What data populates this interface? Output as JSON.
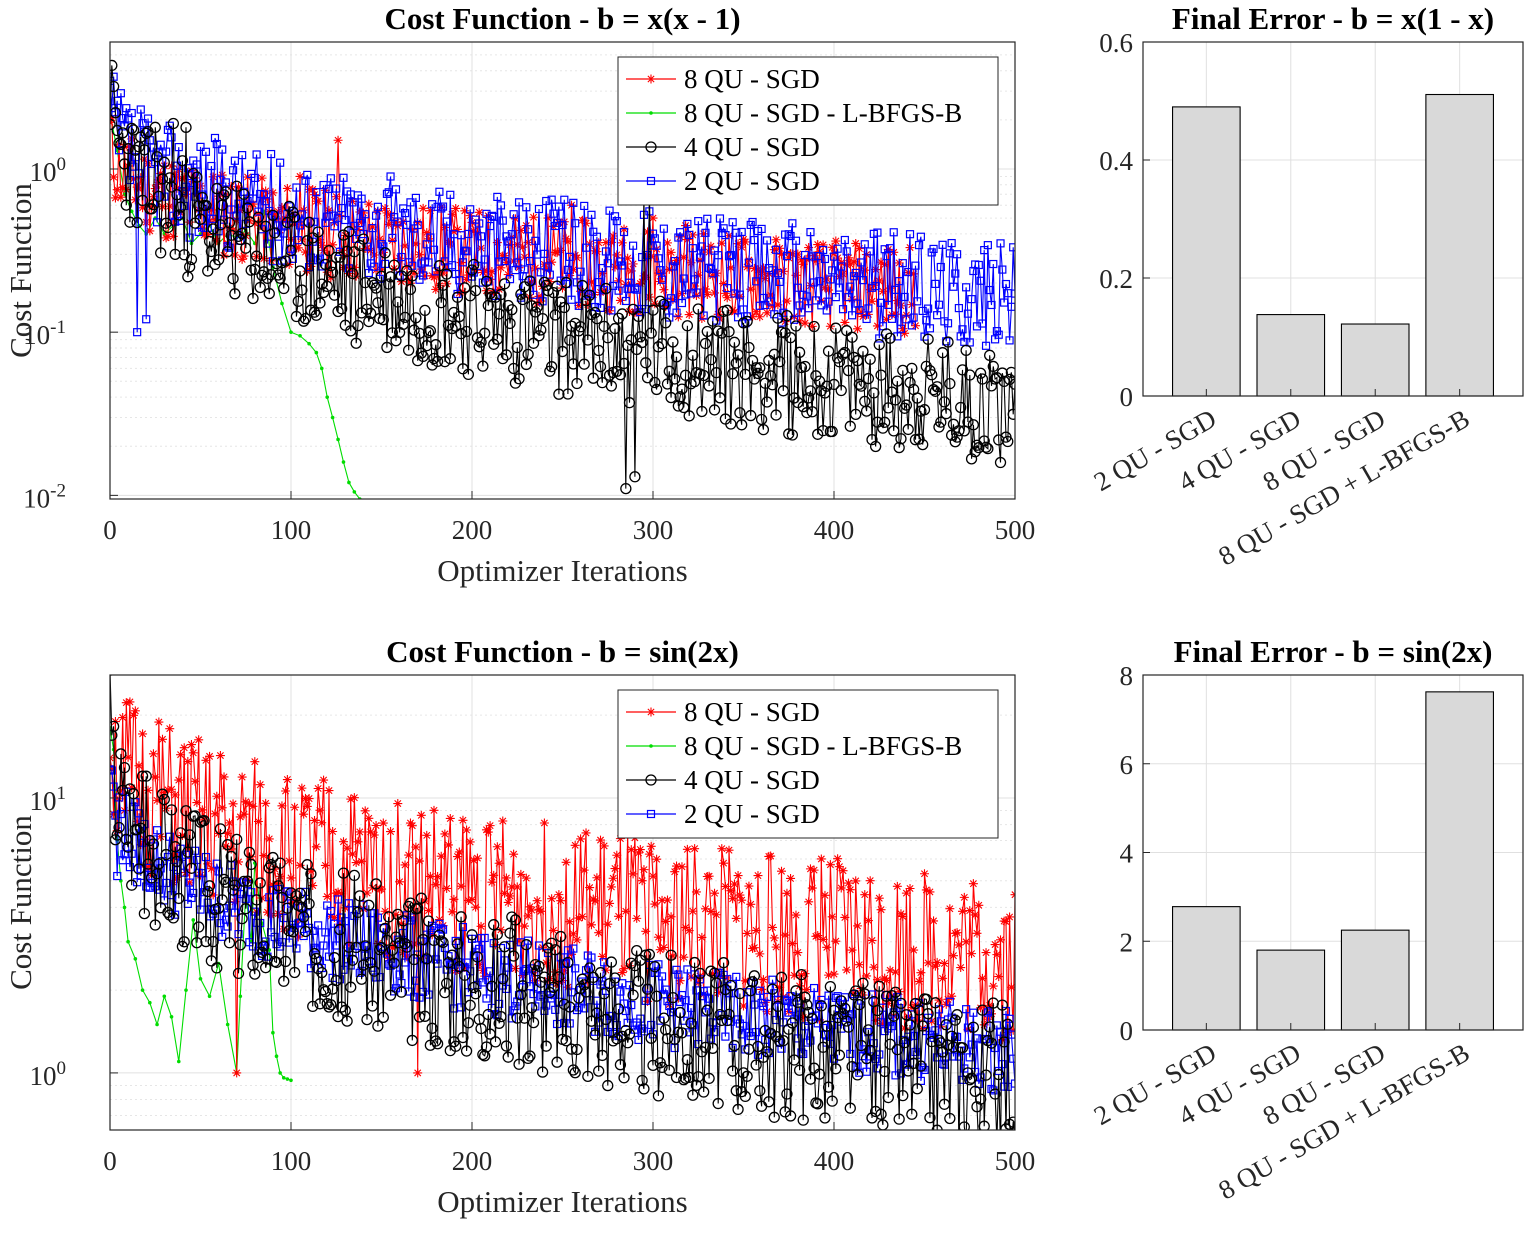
{
  "chart_data": [
    {
      "type": "line",
      "title": "Cost Function - b = x(x - 1)",
      "xlabel": "Optimizer Iterations",
      "ylabel": "Cost Function",
      "yscale": "log",
      "xlim": [
        0,
        500
      ],
      "ylim": [
        0.0095,
        6
      ],
      "xticks": [
        0,
        100,
        200,
        300,
        400,
        500
      ],
      "yticks": [
        {
          "value": 0.01,
          "label": "10",
          "exp": "-2"
        },
        {
          "value": 0.1,
          "label": "10",
          "exp": "-1"
        },
        {
          "value": 1,
          "label": "10",
          "exp": "0"
        }
      ],
      "grid": true,
      "legend_position": "top-right",
      "series": [
        {
          "name": "8 QU - SGD",
          "color": "#ff0000",
          "marker": "asterisk",
          "x_end": 445,
          "y_start": 1.6,
          "y_end": 0.18,
          "noise": 0.45,
          "seed": 11,
          "spikes": [
            [
              105,
              0.9
            ],
            [
              110,
              0.75
            ],
            [
              126,
              1.5
            ],
            [
              230,
              0.45
            ],
            [
              242,
              0.5
            ],
            [
              255,
              0.6
            ],
            [
              300,
              0.5
            ],
            [
              318,
              0.45
            ]
          ]
        },
        {
          "name": "8 QU - SGD - L-BFGS-B",
          "color": "#00dd00",
          "marker": "dot",
          "x": [
            0,
            4,
            8,
            12,
            16,
            20,
            25,
            30,
            35,
            40,
            45,
            50,
            55,
            60,
            65,
            70,
            75,
            80,
            85,
            90,
            95,
            100,
            105,
            110,
            114,
            117,
            120,
            123,
            126,
            129,
            132,
            135,
            138
          ],
          "y": [
            2.2,
            1.3,
            0.7,
            0.55,
            0.45,
            0.4,
            0.5,
            0.4,
            0.45,
            0.5,
            0.35,
            0.4,
            0.45,
            0.35,
            0.4,
            0.38,
            0.42,
            0.35,
            0.55,
            0.25,
            0.15,
            0.1,
            0.095,
            0.085,
            0.075,
            0.06,
            0.04,
            0.03,
            0.022,
            0.016,
            0.012,
            0.0105,
            0.0095
          ]
        },
        {
          "name": "4 QU - SGD",
          "color": "#000000",
          "marker": "circle",
          "x_end": 500,
          "y_start": 3.5,
          "y_end": 0.035,
          "noise": 0.6,
          "seed": 23,
          "spikes": [
            [
              25,
              1.8
            ],
            [
              35,
              1.9
            ],
            [
              42,
              1.8
            ],
            [
              295,
              0.7
            ],
            [
              298,
              0.8
            ],
            [
              285,
              0.011
            ],
            [
              290,
              0.013
            ]
          ]
        },
        {
          "name": "2 QU - SGD",
          "color": "#0000ff",
          "marker": "square",
          "x_end": 500,
          "y_start": 2.6,
          "y_end": 0.17,
          "noise": 0.55,
          "seed": 37,
          "spikes": [
            [
              15,
              0.1
            ],
            [
              20,
              0.12
            ],
            [
              298,
              0.55
            ]
          ]
        }
      ]
    },
    {
      "type": "bar",
      "title": "Final Error - b = x(1 - x)",
      "categories": [
        "2 QU - SGD",
        "4 QU - SGD",
        "8 QU - SGD",
        "8 QU - SGD + L-BFGS-B"
      ],
      "values": [
        0.49,
        0.138,
        0.122,
        0.511
      ],
      "ylim": [
        0,
        0.6
      ],
      "yticks": [
        "0",
        "0.2",
        "0.4",
        "0.6"
      ],
      "grid": true,
      "bar_color": "#d9d9d9"
    },
    {
      "type": "line",
      "title": "Cost Function - b = sin(2x)",
      "xlabel": "Optimizer Iterations",
      "ylabel": "Cost Function",
      "yscale": "log",
      "xlim": [
        0,
        500
      ],
      "ylim": [
        0.62,
        28
      ],
      "xticks": [
        0,
        100,
        200,
        300,
        400,
        500
      ],
      "yticks": [
        {
          "value": 1,
          "label": "10",
          "exp": "0"
        },
        {
          "value": 10,
          "label": "10",
          "exp": "1"
        }
      ],
      "grid": true,
      "legend_position": "top-right",
      "series": [
        {
          "name": "8 QU - SGD",
          "color": "#ff0000",
          "marker": "asterisk",
          "x_end": 500,
          "y_start": 20,
          "y_end": 2.6,
          "noise": 0.5,
          "seed": 51,
          "spikes": [
            [
              8,
              9
            ],
            [
              165,
              6.2
            ],
            [
              393,
              6
            ],
            [
              70,
              1.0
            ],
            [
              170,
              1.0
            ]
          ]
        },
        {
          "name": "8 QU - SGD - L-BFGS-B",
          "color": "#00dd00",
          "marker": "dot",
          "x": [
            0,
            2,
            4,
            6,
            8,
            10,
            14,
            18,
            22,
            26,
            30,
            34,
            38,
            42,
            46,
            50,
            55,
            60,
            65,
            70,
            72,
            75,
            78,
            80,
            84,
            88,
            90,
            92,
            94,
            96,
            98,
            100
          ],
          "y": [
            18,
            15,
            7,
            5,
            4,
            3,
            2.6,
            2.0,
            1.8,
            1.5,
            1.9,
            1.6,
            1.1,
            2.0,
            3.6,
            2.2,
            1.9,
            2.5,
            1.5,
            1.0,
            1.9,
            4.5,
            3.0,
            5.8,
            3.5,
            2.8,
            1.4,
            1.15,
            1.0,
            0.96,
            0.95,
            0.94
          ]
        },
        {
          "name": "4 QU - SGD",
          "color": "#000000",
          "marker": "circle",
          "x_end": 500,
          "y_start": 18,
          "y_end": 0.95,
          "noise": 0.45,
          "seed": 67,
          "spikes": [
            [
              18,
              12
            ],
            [
              20,
              12
            ],
            [
              22,
              7
            ],
            [
              24,
              6.8
            ],
            [
              26,
              5.3
            ],
            [
              483,
              0.64
            ],
            [
              497,
              0.65
            ]
          ]
        },
        {
          "name": "2 QU - SGD",
          "color": "#0000ff",
          "marker": "square",
          "x_end": 500,
          "y_start": 14,
          "y_end": 1.2,
          "noise": 0.25,
          "seed": 79,
          "spikes": [
            [
              2,
              11
            ],
            [
              4,
              5.2
            ]
          ]
        }
      ]
    },
    {
      "type": "bar",
      "title": "Final Error - b = sin(2x)",
      "categories": [
        "2 QU - SGD",
        "4 QU - SGD",
        "8 QU - SGD",
        "8 QU - SGD + L-BFGS-B"
      ],
      "values": [
        2.78,
        1.8,
        2.25,
        7.62
      ],
      "ylim": [
        0,
        8
      ],
      "yticks": [
        "0",
        "2",
        "4",
        "6",
        "8"
      ],
      "grid": true,
      "bar_color": "#d9d9d9"
    }
  ]
}
